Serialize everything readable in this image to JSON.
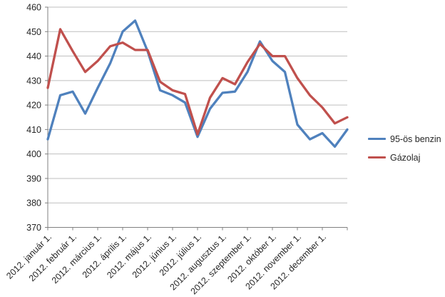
{
  "chart_data": {
    "type": "line",
    "title": "",
    "categories": [
      "2012.01.01",
      "2012.01.15",
      "2012.02.01",
      "2012.02.15",
      "2012.03.01",
      "2012.03.15",
      "2012.04.01",
      "2012.04.15",
      "2012.05.01",
      "2012.05.15",
      "2012.06.01",
      "2012.06.15",
      "2012.07.01",
      "2012.07.15",
      "2012.08.01",
      "2012.08.15",
      "2012.09.01",
      "2012.09.15",
      "2012.10.01",
      "2012.10.15",
      "2012.11.01",
      "2012.11.15",
      "2012.12.01",
      "2012.12.15",
      "2012.12.31"
    ],
    "x_tick_labels": [
      "2012. január 1.",
      "2012. február 1.",
      "2012. március 1.",
      "2012. április 1.",
      "2012. május 1.",
      "2012. június 1.",
      "2012. július 1.",
      "2012. augusztus 1.",
      "2012. szeptember 1.",
      "2012. október 1.",
      "2012. november 1.",
      "2012. december 1."
    ],
    "y_tick_labels": [
      "370",
      "380",
      "390",
      "400",
      "410",
      "420",
      "430",
      "440",
      "450",
      "460"
    ],
    "ylim": [
      370,
      460
    ],
    "grid": true,
    "legend_position": "right",
    "series": [
      {
        "name": "95-ös benzin",
        "color": "#4F81BD",
        "values": [
          406,
          424,
          425.5,
          416.5,
          427,
          437,
          450,
          454.5,
          442,
          426,
          424,
          421,
          407,
          418.5,
          425,
          425.5,
          433.5,
          446,
          438,
          433.5,
          412,
          406,
          408.5,
          403,
          410
        ]
      },
      {
        "name": "Gázolaj",
        "color": "#C0504D",
        "values": [
          427,
          451,
          442,
          433.5,
          438,
          444,
          445.5,
          442.5,
          442.5,
          429.5,
          426,
          424.5,
          408,
          423,
          431,
          428.5,
          437.5,
          445,
          440,
          440,
          431,
          424,
          419,
          412.5,
          415
        ]
      }
    ],
    "colors": {
      "grid": "#BFBFBF",
      "axis": "#808080",
      "text": "#262626",
      "background": "#FFFFFF"
    }
  }
}
